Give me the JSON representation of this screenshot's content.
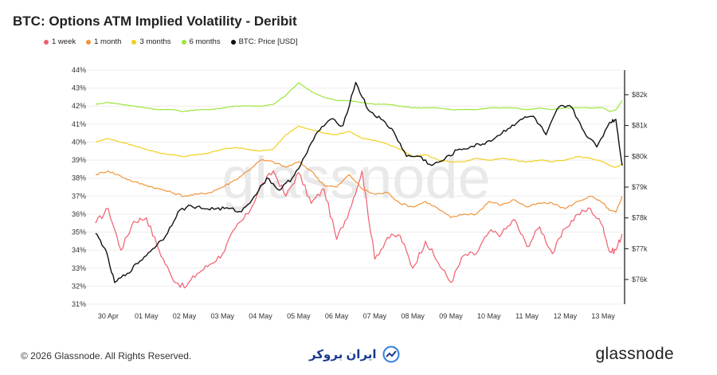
{
  "title": "BTC: Options ATM Implied Volatility - Deribit",
  "footer": {
    "copyright": "© 2026 Glassnode. All Rights Reserved.",
    "center_brand": "ایران بروکر",
    "brand": "glassnode",
    "watermark": "glassnode"
  },
  "colors": {
    "1 week": "#ef5f6e",
    "1 month": "#f0953a",
    "3 months": "#f2cf1f",
    "6 months": "#9be63a",
    "BTC: Price [USD]": "#111111"
  },
  "chart_data": {
    "type": "line",
    "title": "BTC: Options ATM Implied Volatility - Deribit",
    "x_start": "2026-04-29T16:00",
    "x_end": "2026-05-13T12:00",
    "x_ticks": [
      "30 Apr",
      "01 May",
      "02 May",
      "03 May",
      "04 May",
      "05 May",
      "06 May",
      "07 May",
      "08 May",
      "09 May",
      "10 May",
      "11 May",
      "12 May",
      "13 May"
    ],
    "y_left": {
      "range": [
        31,
        44
      ],
      "ticks": [
        "31%",
        "32%",
        "33%",
        "34%",
        "35%",
        "36%",
        "37%",
        "38%",
        "39%",
        "40%",
        "41%",
        "42%",
        "43%",
        "44%"
      ]
    },
    "y_right": {
      "range": [
        75200,
        82800
      ],
      "ticks": [
        "$76k",
        "$77k",
        "$78k",
        "$79k",
        "$80k",
        "$81k",
        "$82k"
      ]
    },
    "legend_position": "top-left",
    "grid": "horizontal",
    "series": [
      {
        "name": "1 week",
        "axis": "left",
        "points": [
          [
            "2026-04-29T16:00",
            35.5
          ],
          [
            "2026-04-30T00:00",
            36.3
          ],
          [
            "2026-04-30T08:00",
            34.0
          ],
          [
            "2026-04-30T16:00",
            35.6
          ],
          [
            "2026-05-01T00:00",
            35.8
          ],
          [
            "2026-05-01T08:00",
            34.0
          ],
          [
            "2026-05-01T16:00",
            32.5
          ],
          [
            "2026-05-02T00:00",
            31.9
          ],
          [
            "2026-05-02T08:00",
            32.7
          ],
          [
            "2026-05-02T16:00",
            33.2
          ],
          [
            "2026-05-03T00:00",
            33.8
          ],
          [
            "2026-05-03T08:00",
            35.2
          ],
          [
            "2026-05-03T16:00",
            36.0
          ],
          [
            "2026-05-04T00:00",
            37.5
          ],
          [
            "2026-05-04T08:00",
            38.4
          ],
          [
            "2026-05-04T16:00",
            37.0
          ],
          [
            "2026-05-05T00:00",
            38.3
          ],
          [
            "2026-05-05T08:00",
            36.6
          ],
          [
            "2026-05-05T16:00",
            37.4
          ],
          [
            "2026-05-06T00:00",
            34.6
          ],
          [
            "2026-05-06T08:00",
            36.2
          ],
          [
            "2026-05-06T16:00",
            38.4
          ],
          [
            "2026-05-07T00:00",
            33.5
          ],
          [
            "2026-05-07T08:00",
            34.7
          ],
          [
            "2026-05-07T16:00",
            34.8
          ],
          [
            "2026-05-08T00:00",
            33.0
          ],
          [
            "2026-05-08T08:00",
            34.5
          ],
          [
            "2026-05-08T16:00",
            33.3
          ],
          [
            "2026-05-09T00:00",
            32.2
          ],
          [
            "2026-05-09T08:00",
            33.7
          ],
          [
            "2026-05-09T16:00",
            33.8
          ],
          [
            "2026-05-10T00:00",
            35.0
          ],
          [
            "2026-05-10T08:00",
            34.9
          ],
          [
            "2026-05-10T16:00",
            35.7
          ],
          [
            "2026-05-11T00:00",
            34.2
          ],
          [
            "2026-05-11T08:00",
            35.3
          ],
          [
            "2026-05-11T16:00",
            33.8
          ],
          [
            "2026-05-12T00:00",
            35.2
          ],
          [
            "2026-05-12T08:00",
            36.0
          ],
          [
            "2026-05-12T16:00",
            36.3
          ],
          [
            "2026-05-13T00:00",
            35.3
          ],
          [
            "2026-05-13T04:00",
            33.9
          ],
          [
            "2026-05-13T08:00",
            34.0
          ],
          [
            "2026-05-13T12:00",
            34.9
          ]
        ]
      },
      {
        "name": "1 month",
        "axis": "left",
        "points": [
          [
            "2026-04-29T16:00",
            38.2
          ],
          [
            "2026-04-30T00:00",
            38.4
          ],
          [
            "2026-04-30T08:00",
            38.1
          ],
          [
            "2026-04-30T16:00",
            37.8
          ],
          [
            "2026-05-01T00:00",
            37.6
          ],
          [
            "2026-05-01T08:00",
            37.4
          ],
          [
            "2026-05-01T16:00",
            37.2
          ],
          [
            "2026-05-02T00:00",
            37.0
          ],
          [
            "2026-05-02T08:00",
            37.1
          ],
          [
            "2026-05-02T16:00",
            37.2
          ],
          [
            "2026-05-03T00:00",
            37.5
          ],
          [
            "2026-05-03T08:00",
            37.9
          ],
          [
            "2026-05-03T16:00",
            38.4
          ],
          [
            "2026-05-04T00:00",
            39.0
          ],
          [
            "2026-05-04T08:00",
            38.9
          ],
          [
            "2026-05-04T16:00",
            38.6
          ],
          [
            "2026-05-05T00:00",
            38.9
          ],
          [
            "2026-05-05T08:00",
            38.4
          ],
          [
            "2026-05-05T16:00",
            37.6
          ],
          [
            "2026-05-06T00:00",
            37.5
          ],
          [
            "2026-05-06T08:00",
            38.2
          ],
          [
            "2026-05-06T16:00",
            37.4
          ],
          [
            "2026-05-07T00:00",
            37.1
          ],
          [
            "2026-05-07T08:00",
            37.2
          ],
          [
            "2026-05-07T16:00",
            36.6
          ],
          [
            "2026-05-08T00:00",
            36.4
          ],
          [
            "2026-05-08T08:00",
            36.7
          ],
          [
            "2026-05-08T16:00",
            36.3
          ],
          [
            "2026-05-09T00:00",
            35.8
          ],
          [
            "2026-05-09T08:00",
            36.0
          ],
          [
            "2026-05-09T16:00",
            36.0
          ],
          [
            "2026-05-10T00:00",
            36.7
          ],
          [
            "2026-05-10T08:00",
            36.5
          ],
          [
            "2026-05-10T16:00",
            36.8
          ],
          [
            "2026-05-11T00:00",
            36.4
          ],
          [
            "2026-05-11T08:00",
            36.6
          ],
          [
            "2026-05-11T16:00",
            36.6
          ],
          [
            "2026-05-12T00:00",
            36.3
          ],
          [
            "2026-05-12T08:00",
            36.7
          ],
          [
            "2026-05-12T16:00",
            37.0
          ],
          [
            "2026-05-13T00:00",
            36.6
          ],
          [
            "2026-05-13T04:00",
            36.2
          ],
          [
            "2026-05-13T08:00",
            36.1
          ],
          [
            "2026-05-13T12:00",
            37.0
          ]
        ]
      },
      {
        "name": "3 months",
        "axis": "left",
        "points": [
          [
            "2026-04-29T16:00",
            40.0
          ],
          [
            "2026-04-30T00:00",
            40.2
          ],
          [
            "2026-04-30T08:00",
            40.0
          ],
          [
            "2026-04-30T16:00",
            39.8
          ],
          [
            "2026-05-01T00:00",
            39.6
          ],
          [
            "2026-05-01T08:00",
            39.4
          ],
          [
            "2026-05-01T16:00",
            39.3
          ],
          [
            "2026-05-02T00:00",
            39.2
          ],
          [
            "2026-05-02T08:00",
            39.3
          ],
          [
            "2026-05-02T16:00",
            39.4
          ],
          [
            "2026-05-03T00:00",
            39.6
          ],
          [
            "2026-05-03T08:00",
            39.7
          ],
          [
            "2026-05-03T16:00",
            39.6
          ],
          [
            "2026-05-04T00:00",
            39.5
          ],
          [
            "2026-05-04T08:00",
            39.6
          ],
          [
            "2026-05-04T16:00",
            40.4
          ],
          [
            "2026-05-05T00:00",
            40.9
          ],
          [
            "2026-05-05T08:00",
            40.7
          ],
          [
            "2026-05-05T16:00",
            40.5
          ],
          [
            "2026-05-06T00:00",
            40.4
          ],
          [
            "2026-05-06T08:00",
            40.6
          ],
          [
            "2026-05-06T16:00",
            40.2
          ],
          [
            "2026-05-07T00:00",
            40.1
          ],
          [
            "2026-05-07T08:00",
            39.9
          ],
          [
            "2026-05-07T16:00",
            39.6
          ],
          [
            "2026-05-08T00:00",
            39.2
          ],
          [
            "2026-05-08T08:00",
            39.3
          ],
          [
            "2026-05-08T16:00",
            39.0
          ],
          [
            "2026-05-09T00:00",
            38.9
          ],
          [
            "2026-05-09T08:00",
            38.9
          ],
          [
            "2026-05-09T16:00",
            39.1
          ],
          [
            "2026-05-10T00:00",
            39.0
          ],
          [
            "2026-05-10T08:00",
            39.1
          ],
          [
            "2026-05-10T16:00",
            39.0
          ],
          [
            "2026-05-11T00:00",
            38.9
          ],
          [
            "2026-05-11T08:00",
            39.0
          ],
          [
            "2026-05-11T16:00",
            38.9
          ],
          [
            "2026-05-12T00:00",
            39.0
          ],
          [
            "2026-05-12T08:00",
            39.2
          ],
          [
            "2026-05-12T16:00",
            39.1
          ],
          [
            "2026-05-13T00:00",
            38.9
          ],
          [
            "2026-05-13T04:00",
            38.7
          ],
          [
            "2026-05-13T08:00",
            38.6
          ],
          [
            "2026-05-13T12:00",
            38.8
          ]
        ]
      },
      {
        "name": "6 months",
        "axis": "left",
        "points": [
          [
            "2026-04-29T16:00",
            42.1
          ],
          [
            "2026-04-30T00:00",
            42.2
          ],
          [
            "2026-04-30T08:00",
            42.1
          ],
          [
            "2026-04-30T16:00",
            42.0
          ],
          [
            "2026-05-01T00:00",
            41.9
          ],
          [
            "2026-05-01T08:00",
            41.8
          ],
          [
            "2026-05-01T16:00",
            41.8
          ],
          [
            "2026-05-02T00:00",
            41.7
          ],
          [
            "2026-05-02T08:00",
            41.8
          ],
          [
            "2026-05-02T16:00",
            41.8
          ],
          [
            "2026-05-03T00:00",
            41.9
          ],
          [
            "2026-05-03T08:00",
            42.0
          ],
          [
            "2026-05-03T16:00",
            42.0
          ],
          [
            "2026-05-04T00:00",
            42.0
          ],
          [
            "2026-05-04T08:00",
            42.1
          ],
          [
            "2026-05-04T16:00",
            42.6
          ],
          [
            "2026-05-05T00:00",
            43.3
          ],
          [
            "2026-05-05T08:00",
            42.8
          ],
          [
            "2026-05-05T16:00",
            42.5
          ],
          [
            "2026-05-06T00:00",
            42.3
          ],
          [
            "2026-05-06T08:00",
            42.3
          ],
          [
            "2026-05-06T16:00",
            42.2
          ],
          [
            "2026-05-07T00:00",
            42.1
          ],
          [
            "2026-05-07T08:00",
            42.1
          ],
          [
            "2026-05-07T16:00",
            42.0
          ],
          [
            "2026-05-08T00:00",
            41.9
          ],
          [
            "2026-05-08T08:00",
            41.9
          ],
          [
            "2026-05-08T16:00",
            41.9
          ],
          [
            "2026-05-09T00:00",
            41.8
          ],
          [
            "2026-05-09T08:00",
            41.8
          ],
          [
            "2026-05-09T16:00",
            41.8
          ],
          [
            "2026-05-10T00:00",
            41.9
          ],
          [
            "2026-05-10T08:00",
            41.9
          ],
          [
            "2026-05-10T16:00",
            41.9
          ],
          [
            "2026-05-11T00:00",
            41.8
          ],
          [
            "2026-05-11T08:00",
            41.9
          ],
          [
            "2026-05-11T16:00",
            41.8
          ],
          [
            "2026-05-12T00:00",
            41.9
          ],
          [
            "2026-05-12T08:00",
            41.9
          ],
          [
            "2026-05-12T16:00",
            41.9
          ],
          [
            "2026-05-13T00:00",
            41.9
          ],
          [
            "2026-05-13T04:00",
            41.7
          ],
          [
            "2026-05-13T08:00",
            41.8
          ],
          [
            "2026-05-13T12:00",
            42.3
          ]
        ]
      },
      {
        "name": "BTC: Price [USD]",
        "axis": "right",
        "points": [
          [
            "2026-04-29T16:00",
            77.5
          ],
          [
            "2026-04-29T22:00",
            77.0
          ],
          [
            "2026-04-30T04:00",
            75.9
          ],
          [
            "2026-04-30T12:00",
            76.2
          ],
          [
            "2026-04-30T20:00",
            76.6
          ],
          [
            "2026-05-01T04:00",
            77.0
          ],
          [
            "2026-05-01T12:00",
            77.4
          ],
          [
            "2026-05-01T20:00",
            78.2
          ],
          [
            "2026-05-02T04:00",
            78.4
          ],
          [
            "2026-05-02T12:00",
            78.3
          ],
          [
            "2026-05-02T20:00",
            78.3
          ],
          [
            "2026-05-03T04:00",
            78.3
          ],
          [
            "2026-05-03T12:00",
            78.2
          ],
          [
            "2026-05-03T20:00",
            78.7
          ],
          [
            "2026-05-04T04:00",
            79.3
          ],
          [
            "2026-05-04T12:00",
            78.9
          ],
          [
            "2026-05-04T20:00",
            79.3
          ],
          [
            "2026-05-05T04:00",
            80.0
          ],
          [
            "2026-05-05T12:00",
            80.8
          ],
          [
            "2026-05-05T20:00",
            81.2
          ],
          [
            "2026-05-06T04:00",
            81.0
          ],
          [
            "2026-05-06T12:00",
            82.4
          ],
          [
            "2026-05-06T20:00",
            81.5
          ],
          [
            "2026-05-07T04:00",
            81.2
          ],
          [
            "2026-05-07T12:00",
            80.8
          ],
          [
            "2026-05-07T20:00",
            80.0
          ],
          [
            "2026-05-08T04:00",
            80.0
          ],
          [
            "2026-05-08T12:00",
            79.7
          ],
          [
            "2026-05-08T20:00",
            79.9
          ],
          [
            "2026-05-09T04:00",
            80.2
          ],
          [
            "2026-05-09T12:00",
            80.3
          ],
          [
            "2026-05-09T20:00",
            80.4
          ],
          [
            "2026-05-10T04:00",
            80.6
          ],
          [
            "2026-05-10T12:00",
            80.9
          ],
          [
            "2026-05-10T20:00",
            81.2
          ],
          [
            "2026-05-11T04:00",
            81.3
          ],
          [
            "2026-05-11T12:00",
            80.7
          ],
          [
            "2026-05-11T20:00",
            81.6
          ],
          [
            "2026-05-12T04:00",
            81.6
          ],
          [
            "2026-05-12T12:00",
            80.8
          ],
          [
            "2026-05-12T20:00",
            80.3
          ],
          [
            "2026-05-13T04:00",
            81.1
          ],
          [
            "2026-05-13T08:00",
            81.2
          ],
          [
            "2026-05-13T12:00",
            79.7
          ]
        ]
      }
    ]
  }
}
